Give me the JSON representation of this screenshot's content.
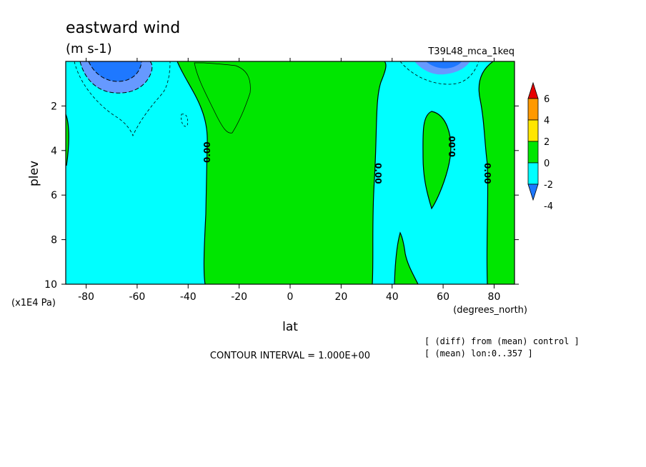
{
  "chart_data": {
    "type": "heatmap",
    "title": "eastward wind",
    "units": "(m s-1)",
    "experiment": "T39L48_mca_1keq",
    "xlabel": "lat",
    "xunits": "(degrees_north)",
    "ylabel": "plev",
    "yunits": "(x1E4 Pa)",
    "xlim": [
      -88,
      88
    ],
    "ylim": [
      10,
      0
    ],
    "x_ticks": [
      -80,
      -60,
      -40,
      -20,
      0,
      20,
      40,
      60,
      80
    ],
    "y_ticks": [
      2,
      4,
      6,
      8,
      10
    ],
    "colorbar": {
      "levels": [
        -4,
        -2,
        0,
        2,
        4,
        6
      ],
      "colors": [
        "#1e78ff",
        "#00ffff",
        "#00e600",
        "#ffe600",
        "#ff9900",
        "#e60000"
      ],
      "extend": "both"
    },
    "contour_interval_text": "CONTOUR INTERVAL = 1.000E+00",
    "contour_labels": [
      "0.00",
      "0.00",
      "0.00",
      "0.00"
    ],
    "regions": [
      {
        "sign": "negative",
        "lat_range": [
          -88,
          -33
        ],
        "value_range": [
          -2,
          0
        ]
      },
      {
        "sign": "positive",
        "lat_range": [
          -33,
          33
        ],
        "value_range": [
          0,
          2
        ]
      },
      {
        "sign": "negative",
        "lat_range": [
          33,
          77
        ],
        "value_range": [
          -2,
          0
        ]
      },
      {
        "sign": "positive",
        "lat_range": [
          77,
          88
        ],
        "value_range": [
          0,
          2
        ]
      },
      {
        "sign": "negative",
        "lat_center": -65,
        "plev_range": [
          0,
          1.5
        ],
        "minimum": -6
      },
      {
        "sign": "negative",
        "lat_center": 65,
        "plev_range": [
          0,
          0.5
        ],
        "minimum": -4
      }
    ],
    "notes": [
      "[ (diff) from (mean) control ]",
      "[ (mean) lon:0..357 ]"
    ]
  }
}
